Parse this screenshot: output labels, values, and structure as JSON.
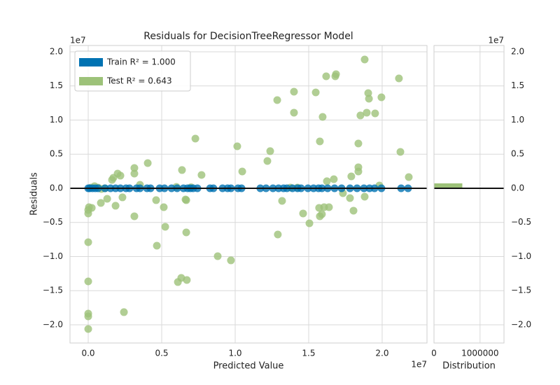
{
  "chart_data": [
    {
      "type": "scatter",
      "title": "Residuals for DecisionTreeRegressor Model",
      "xlabel": "Predicted Value",
      "ylabel": "Residuals",
      "x_offset_label": "1e7",
      "y_offset_label": "1e7",
      "xlim": [
        -0.124,
        2.305
      ],
      "ylim": [
        -2.267,
        2.092
      ],
      "xticks": [
        {
          "value": 0,
          "label": "0.0"
        },
        {
          "value": 0.5,
          "label": "0.5"
        },
        {
          "value": 1,
          "label": "1.0"
        },
        {
          "value": 1.5,
          "label": "1.5"
        },
        {
          "value": 2,
          "label": "2.0"
        }
      ],
      "yticks": [
        {
          "value": -2,
          "label": "−2.0"
        },
        {
          "value": -1.5,
          "label": "−1.5"
        },
        {
          "value": -1,
          "label": "−1.0"
        },
        {
          "value": -0.5,
          "label": "−0.5"
        },
        {
          "value": 0,
          "label": "0.0"
        },
        {
          "value": 0.5,
          "label": "0.5"
        },
        {
          "value": 1,
          "label": "1.0"
        },
        {
          "value": 1.5,
          "label": "1.5"
        },
        {
          "value": 2,
          "label": "2.0"
        }
      ],
      "grid": true,
      "legend": "upper left",
      "hline": 0,
      "series": [
        {
          "name": "Train R² = 1.000",
          "color": "#0072b2",
          "x": [
            0,
            0.01,
            0.029,
            0.048,
            0.067,
            0.114,
            0.152,
            0.186,
            0.219,
            0.257,
            0.281,
            0.329,
            0.352,
            0.4,
            0.424,
            0.486,
            0.519,
            0.567,
            0.605,
            0.648,
            0.676,
            0.695,
            0.714,
            0.743,
            0.829,
            0.852,
            0.914,
            0.948,
            0.971,
            1.019,
            1.043,
            1.171,
            1.21,
            1.257,
            1.295,
            1.329,
            1.352,
            1.39,
            1.424,
            1.448,
            1.495,
            1.533,
            1.567,
            1.59,
            1.629,
            1.676,
            1.724,
            1.781,
            1.829,
            1.876,
            1.914,
            1.948,
            1.995,
            2.129,
            2.176
          ],
          "values": [
            0,
            0,
            0,
            0,
            0,
            0,
            0,
            0,
            0,
            0,
            0,
            0,
            0,
            0,
            0,
            0,
            0,
            0,
            0,
            0,
            0,
            0,
            0,
            0,
            0,
            0,
            0,
            0,
            0,
            0,
            0,
            0,
            0,
            0,
            0,
            0,
            0,
            0,
            0,
            0,
            0,
            0,
            0,
            0,
            0,
            0,
            0,
            0,
            0,
            0,
            0,
            0,
            0,
            0,
            0
          ]
        },
        {
          "name": "Test R² = 0.643",
          "color": "#9dc279",
          "x": [
            1.881,
            1.681,
            1.686,
            1.548,
            1.4,
            1.286,
            1.619,
            2.114,
            1.905,
            1.91,
            1.952,
            1.995,
            1.895,
            1.852,
            1.4,
            1.595,
            1.576,
            1.838,
            0.729,
            1.014,
            1.238,
            1.219,
            2.124,
            0.638,
            0.405,
            0.314,
            0.314,
            0.771,
            1.048,
            0.2,
            0.171,
            0.162,
            0.219,
            1.838,
            1.838,
            1.671,
            1.624,
            2.181,
            1.79,
            1.981,
            0,
            0.005,
            0,
            0.024,
            0,
            0,
            0,
            0,
            0,
            0.129,
            0.086,
            0.186,
            0.233,
            0.314,
            0.462,
            0.467,
            0.514,
            0.524,
            0.662,
            0.667,
            0.667,
            0.61,
            0.633,
            0.671,
            0.243,
            0.881,
            0.971,
            1.29,
            1.319,
            1.462,
            1.505,
            1.571,
            1.576,
            1.59,
            1.605,
            1.638,
            1.733,
            1.805,
            1.781,
            1.881,
            0.019,
            0.043,
            0.067,
            0.09,
            0.114,
            0.352,
            0.6,
            0.7,
            1.376,
            1.424
          ],
          "values": [
            1.887,
            1.641,
            1.672,
            1.405,
            1.415,
            1.292,
            1.641,
            1.61,
            1.395,
            1.313,
            1.097,
            1.333,
            1.108,
            1.067,
            1.108,
            1.046,
            0.687,
            0.656,
            0.728,
            0.615,
            0.544,
            0.4,
            0.533,
            0.267,
            0.369,
            0.297,
            0.215,
            0.195,
            0.246,
            0.215,
            0.154,
            0.123,
            0.185,
            0.308,
            0.246,
            0.133,
            0.103,
            0.164,
            0.174,
            0.041,
            -0.318,
            -0.277,
            -0.369,
            -0.287,
            -0.79,
            -1.364,
            -1.836,
            -1.877,
            -2.062,
            -0.154,
            -0.215,
            -0.256,
            -0.133,
            -0.41,
            -0.174,
            -0.841,
            -0.277,
            -0.564,
            -0.164,
            -0.174,
            -0.646,
            -1.374,
            -1.313,
            -1.344,
            -1.815,
            -0.995,
            -1.056,
            -0.677,
            -0.185,
            -0.369,
            -0.513,
            -0.287,
            -0.41,
            -0.38,
            -0.277,
            -0.277,
            -0.072,
            -0.328,
            -0.144,
            -0.123,
            0.01,
            0.031,
            0.01,
            -0.01,
            0,
            0.051,
            0.02,
            0.015,
            0.01,
            0.01
          ]
        }
      ]
    },
    {
      "type": "histogram",
      "orientation": "horizontal",
      "xlabel": "Distribution",
      "y_offset_label": "1e7",
      "xlim": [
        0,
        1520000
      ],
      "xticks": [
        0,
        1000000
      ],
      "ylim": [
        -2.267,
        2.092
      ],
      "yticks": [
        {
          "value": -2,
          "label": "−2.0"
        },
        {
          "value": -1.5,
          "label": "−1.5"
        },
        {
          "value": -1,
          "label": "−1.0"
        },
        {
          "value": -0.5,
          "label": "−0.5"
        },
        {
          "value": 0,
          "label": "0.0"
        },
        {
          "value": 0.5,
          "label": "0.5"
        },
        {
          "value": 1,
          "label": "1.0"
        },
        {
          "value": 1.5,
          "label": "1.5"
        },
        {
          "value": 2,
          "label": "2.0"
        }
      ],
      "grid": true,
      "hline": 0,
      "bins": [
        0,
        0.072
      ],
      "counts": [
        615000
      ],
      "color": "#9dc279"
    }
  ]
}
